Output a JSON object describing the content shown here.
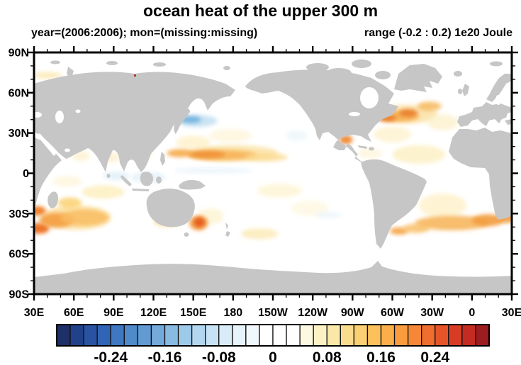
{
  "title": "ocean heat of the upper 300 m",
  "subtitle_left": "year=(2006:2006); mon=(missing:missing)",
  "subtitle_right": "range (-0.2 : 0.2) 1e20 Joule",
  "axes": {
    "x": {
      "labels": [
        "30E",
        "60E",
        "90E",
        "120E",
        "150E",
        "180",
        "150W",
        "120W",
        "90W",
        "60W",
        "30W",
        "0",
        "30E"
      ],
      "lon_start": 30,
      "lon_end": 390,
      "major_step_deg": 30,
      "minor_step_deg": 10
    },
    "y": {
      "labels": [
        "90N",
        "60N",
        "30N",
        "0",
        "30S",
        "60S",
        "90S"
      ],
      "lat_start": 90,
      "lat_end": -90,
      "major_step_deg": 30,
      "minor_step_deg": 10
    }
  },
  "colorbar": {
    "labels": [
      "-0.24",
      "-0.16",
      "-0.08",
      "0",
      "0.08",
      "0.16",
      "0.24"
    ],
    "label_boundary_indices": [
      4,
      8,
      12,
      16,
      20,
      24,
      28
    ],
    "level_min": -0.3,
    "level_max": 0.3,
    "level_step": 0.02,
    "colors": [
      "#1d3067",
      "#21418b",
      "#2a52a2",
      "#3164b5",
      "#3f77c2",
      "#4f8aca",
      "#619bd2",
      "#74aada",
      "#89bae2",
      "#9ecaea",
      "#b3d7f0",
      "#c7e2f5",
      "#d8ecf8",
      "#e6f3fb",
      "#f1f8fd",
      "#ffffff",
      "#ffffff",
      "#ffffff",
      "#fdf8e1",
      "#fcf1c5",
      "#fbe8a9",
      "#fadc8d",
      "#fbd072",
      "#fcc05b",
      "#fcae4a",
      "#f99c3e",
      "#f58736",
      "#ef6e2d",
      "#e65427",
      "#d83c24",
      "#c42b21",
      "#9c1c20"
    ]
  },
  "chart_data": {
    "type": "heatmap",
    "projection": "equirectangular",
    "title": "ocean heat of the upper 300 m",
    "units": "1e20 Joule",
    "value_range": [
      -0.2,
      0.2
    ],
    "lon_range": [
      30,
      390
    ],
    "lat_range": [
      -90,
      90
    ],
    "land_color": "#c6c6c6",
    "ocean_color": "#ffffff",
    "colorbar_levels": {
      "min": -0.3,
      "max": 0.3,
      "step": 0.02
    },
    "anomalies": [
      {
        "name": "south-indian-warm-halo",
        "lon": 62,
        "lat": -33,
        "rlon": 26,
        "rlat": 9,
        "value": 0.08,
        "color": "#fbdc96",
        "opacity": 0.8
      },
      {
        "name": "south-indian-tropical-arm",
        "lon": 82,
        "lat": -14,
        "rlon": 16,
        "rlat": 5,
        "value": 0.05,
        "color": "#fdeebc",
        "opacity": 0.8
      },
      {
        "name": "central-indian-cream",
        "lon": 55,
        "lat": -6,
        "rlon": 11,
        "rlat": 4,
        "value": 0.03,
        "color": "#fdf4d6",
        "opacity": 0.7
      },
      {
        "name": "bay-of-bengal-cream",
        "lon": 88,
        "lat": 12,
        "rlon": 7,
        "rlat": 4,
        "value": 0.04,
        "color": "#fcf0c8",
        "opacity": 0.7
      },
      {
        "name": "arabian-sea-cream",
        "lon": 65,
        "lat": 13,
        "rlon": 7,
        "rlat": 4,
        "value": 0.04,
        "color": "#fcf0c8",
        "opacity": 0.7
      },
      {
        "name": "barents-sea-warm",
        "lon": 40,
        "lat": 73,
        "rlon": 11,
        "rlat": 2.5,
        "value": 0.05,
        "color": "#fbe7ae",
        "opacity": 0.8
      },
      {
        "name": "equatorial-indian-cool",
        "lon": 92,
        "lat": -2,
        "rlon": 10,
        "rlat": 3,
        "value": -0.03,
        "color": "#ddeef8",
        "opacity": 0.8
      },
      {
        "name": "indonesian-seas-cool",
        "lon": 116,
        "lat": -3,
        "rlon": 13,
        "rlat": 4,
        "value": -0.04,
        "color": "#e2f0f9",
        "opacity": 0.8
      },
      {
        "name": "south-china-sea-cream",
        "lon": 113,
        "lat": 14,
        "rlon": 6,
        "rlat": 4,
        "value": 0.03,
        "color": "#fdf4d6",
        "opacity": 0.7
      },
      {
        "name": "great-australian-bight-cream",
        "lon": 130,
        "lat": -36,
        "rlon": 10,
        "rlat": 4,
        "value": 0.06,
        "color": "#fbe3a4",
        "opacity": 0.8
      },
      {
        "name": "tasman-sea-cream",
        "lon": 163,
        "lat": -32,
        "rlon": 10,
        "rlat": 6,
        "value": 0.04,
        "color": "#fdf2cc",
        "opacity": 0.7
      },
      {
        "name": "nw-pacific-subtropic-cream",
        "lon": 150,
        "lat": 23,
        "rlon": 13,
        "rlat": 5,
        "value": 0.05,
        "color": "#fdf0c6",
        "opacity": 0.75
      },
      {
        "name": "n-pacific-central-cream",
        "lon": 178,
        "lat": 28,
        "rlon": 16,
        "rlat": 5,
        "value": 0.04,
        "color": "#fdf4d6",
        "opacity": 0.7
      },
      {
        "name": "pacific-warm-band-halo",
        "lon": 180,
        "lat": 15,
        "rlon": 34,
        "rlat": 6,
        "value": 0.08,
        "color": "#fae1a0",
        "opacity": 0.8
      },
      {
        "name": "pacific-warm-band",
        "lon": 172,
        "lat": 13.5,
        "rlon": 26,
        "rlat": 3.8,
        "value": 0.13,
        "color": "#f7b254",
        "opacity": 0.9
      },
      {
        "name": "pacific-warm-band-core",
        "lon": 160,
        "lat": 14,
        "rlon": 14,
        "rlat": 2.8,
        "value": 0.17,
        "color": "#f0923a",
        "opacity": 0.95
      },
      {
        "name": "pacific-band-west",
        "lon": 140,
        "lat": 15,
        "rlon": 10,
        "rlat": 3,
        "value": 0.12,
        "color": "#f5a849",
        "opacity": 0.9
      },
      {
        "name": "pacific-band-east-tail",
        "lon": 205,
        "lat": 12,
        "rlon": 16,
        "rlat": 3,
        "value": 0.07,
        "color": "#fbd98d",
        "opacity": 0.8
      },
      {
        "name": "kuroshio-oyashio-cool-halo",
        "lon": 153,
        "lat": 39,
        "rlon": 15,
        "rlat": 4.5,
        "value": -0.06,
        "color": "#c2def1",
        "opacity": 0.85
      },
      {
        "name": "kuroshio-oyashio-cool-core",
        "lon": 148,
        "lat": 40,
        "rlon": 8,
        "rlat": 2.6,
        "value": -0.1,
        "color": "#6fb0de",
        "opacity": 0.9
      },
      {
        "name": "equatorial-pacific-cool",
        "lon": 165,
        "lat": 2,
        "rlon": 30,
        "rlat": 2.2,
        "value": -0.02,
        "color": "#e8f4fb",
        "opacity": 0.8
      },
      {
        "name": "california-current-cool",
        "lon": 228,
        "lat": 28,
        "rlon": 8,
        "rlat": 4,
        "value": -0.02,
        "color": "#ecf6fb",
        "opacity": 0.8
      },
      {
        "name": "south-pacific-cream-nw",
        "lon": 215,
        "lat": -13,
        "rlon": 17,
        "rlat": 5,
        "value": 0.04,
        "color": "#fdf2cc",
        "opacity": 0.7
      },
      {
        "name": "south-pacific-cream-se",
        "lon": 238,
        "lat": -26,
        "rlon": 14,
        "rlat": 6,
        "value": 0.03,
        "color": "#fdf6da",
        "opacity": 0.65
      },
      {
        "name": "south-pacific-45s-cream",
        "lon": 200,
        "lat": -45,
        "rlon": 14,
        "rlat": 4,
        "value": 0.05,
        "color": "#fbe7ae",
        "opacity": 0.75
      },
      {
        "name": "se-pacific-cool-streak",
        "lon": 252,
        "lat": -31,
        "rlon": 10,
        "rlat": 2.2,
        "value": -0.02,
        "color": "#eaf5fb",
        "opacity": 0.8
      },
      {
        "name": "gulf-stream-halo",
        "lon": 312,
        "lat": 44,
        "rlon": 22,
        "rlat": 7,
        "value": 0.07,
        "color": "#fbdfa0",
        "opacity": 0.8
      },
      {
        "name": "gulf-stream-band",
        "lon": 305,
        "lat": 42.5,
        "rlon": 15,
        "rlat": 4,
        "value": 0.12,
        "color": "#f6ad4e",
        "opacity": 0.9
      },
      {
        "name": "gulf-stream-core-west",
        "lon": 296,
        "lat": 41,
        "rlon": 7,
        "rlat": 2.6,
        "value": 0.18,
        "color": "#ea8030",
        "opacity": 0.95
      },
      {
        "name": "gulf-stream-core-east",
        "lon": 312,
        "lat": 45,
        "rlon": 7,
        "rlat": 2.8,
        "value": 0.18,
        "color": "#ea8030",
        "opacity": 0.95
      },
      {
        "name": "north-atlantic-ne-warm",
        "lon": 328,
        "lat": 50,
        "rlon": 9,
        "rlat": 3.5,
        "value": 0.1,
        "color": "#f7b85e",
        "opacity": 0.85
      },
      {
        "name": "gulf-of-mexico-warm",
        "lon": 265,
        "lat": 25,
        "rlon": 5,
        "rlat": 3.5,
        "value": 0.16,
        "color": "#ef8a36",
        "opacity": 0.95
      },
      {
        "name": "sargasso-cream",
        "lon": 300,
        "lat": 29,
        "rlon": 14,
        "rlat": 6,
        "value": 0.05,
        "color": "#fdf0c6",
        "opacity": 0.7
      },
      {
        "name": "tropical-atlantic-cream",
        "lon": 320,
        "lat": 14,
        "rlon": 20,
        "rlat": 7,
        "value": 0.05,
        "color": "#fceebe",
        "opacity": 0.75
      },
      {
        "name": "caribbean-cream",
        "lon": 283,
        "lat": 15,
        "rlon": 9,
        "rlat": 4,
        "value": 0.04,
        "color": "#fdf4d6",
        "opacity": 0.7
      },
      {
        "name": "ne-atlantic-cream",
        "lon": 338,
        "lat": 38,
        "rlon": 12,
        "rlat": 6,
        "value": 0.05,
        "color": "#fcf0c8",
        "opacity": 0.7
      },
      {
        "name": "south-atlantic-wash",
        "lon": 338,
        "lat": -24,
        "rlon": 18,
        "rlat": 9,
        "value": 0.05,
        "color": "#fdf0c6",
        "opacity": 0.75
      },
      {
        "name": "south-atlantic-band",
        "lon": 345,
        "lat": -37,
        "rlon": 28,
        "rlat": 5.5,
        "value": 0.11,
        "color": "#f7b254",
        "opacity": 0.85
      },
      {
        "name": "south-atlantic-band-east",
        "lon": 372,
        "lat": -35,
        "rlon": 12,
        "rlat": 4.5,
        "value": 0.14,
        "color": "#f29b3e",
        "opacity": 0.9
      },
      {
        "name": "agulhas-edge-warm",
        "lon": 386,
        "lat": -33,
        "rlon": 7,
        "rlat": 4,
        "value": 0.14,
        "color": "#f29b3e",
        "opacity": 0.9
      },
      {
        "name": "falkland-shelf-warm",
        "lon": 305,
        "lat": -43,
        "rlon": 7,
        "rlat": 2.8,
        "value": 0.11,
        "color": "#f5a343",
        "opacity": 0.9
      },
      {
        "name": "argentine-basin-warm",
        "lon": 318,
        "lat": -41,
        "rlon": 10,
        "rlat": 3.5,
        "value": 0.09,
        "color": "#f8c068",
        "opacity": 0.85
      },
      {
        "name": "agulhas-retroflection-core1",
        "lon": 33,
        "lat": -28,
        "rlon": 6,
        "rlat": 3.5,
        "value": 0.2,
        "color": "#ef7c24",
        "opacity": 0.95
      },
      {
        "name": "agulhas-retroflection-core2",
        "lon": 34,
        "lat": -41,
        "rlon": 7.5,
        "rlat": 4,
        "value": 0.24,
        "color": "#ec6f1e",
        "opacity": 0.95
      },
      {
        "name": "sw-indian-band",
        "lon": 47,
        "lat": -35,
        "rlon": 13,
        "rlat": 5.5,
        "value": 0.14,
        "color": "#f49d40",
        "opacity": 0.9
      },
      {
        "name": "s-indian-mid-band",
        "lon": 68,
        "lat": -33,
        "rlon": 18,
        "rlat": 6,
        "value": 0.1,
        "color": "#f8bc60",
        "opacity": 0.85
      },
      {
        "name": "madagascar-east-warm",
        "lon": 57,
        "lat": -22,
        "rlon": 9,
        "rlat": 4,
        "value": 0.08,
        "color": "#fbd171",
        "opacity": 0.85
      },
      {
        "name": "tasman-warm-halo",
        "lon": 154,
        "lat": -37,
        "rlon": 7,
        "rlat": 5.5,
        "value": 0.15,
        "color": "#f5983c",
        "opacity": 0.9
      },
      {
        "name": "tasman-warm-core",
        "lon": 154.5,
        "lat": -36.5,
        "rlon": 4,
        "rlat": 3.5,
        "value": 0.26,
        "color": "#e45a1e",
        "opacity": 0.95
      }
    ]
  }
}
